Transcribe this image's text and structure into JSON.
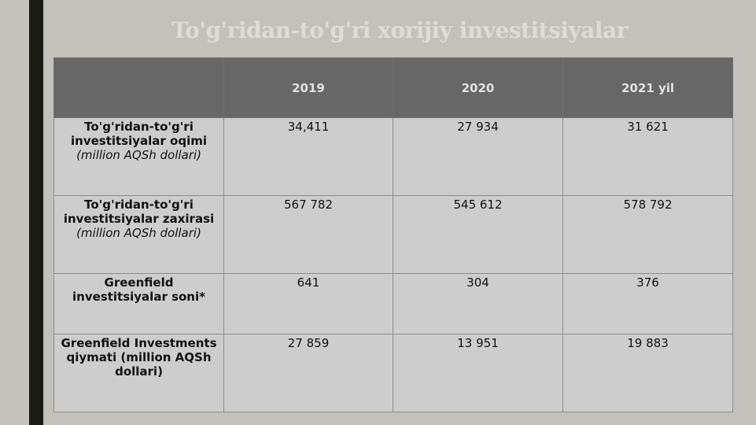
{
  "title": "To'g'ridan-to'g'ri xorijiy investitsiyalar",
  "table": {
    "columns": [
      "2019",
      "2020",
      "2021 yil"
    ],
    "rows": [
      {
        "label": "To'g'ridan-to'g'ri investitsiyalar oqimi",
        "note": "(million AQSh dollari)",
        "cells": [
          "34,411",
          "27 934",
          "31 621"
        ]
      },
      {
        "label": "To'g'ridan-to'g'ri investitsiyalar zaxirasi",
        "note": "(million AQSh dollari)",
        "cells": [
          "567 782",
          "545 612",
          "578 792"
        ]
      },
      {
        "label": "Greenfield investitsiyalar soni*",
        "cells": [
          "641",
          "304",
          "376"
        ]
      },
      {
        "label": "Greenfield Investments qiymati (million AQSh dollari)",
        "cells": [
          "27 859",
          "13 951",
          "19 883"
        ]
      }
    ]
  }
}
